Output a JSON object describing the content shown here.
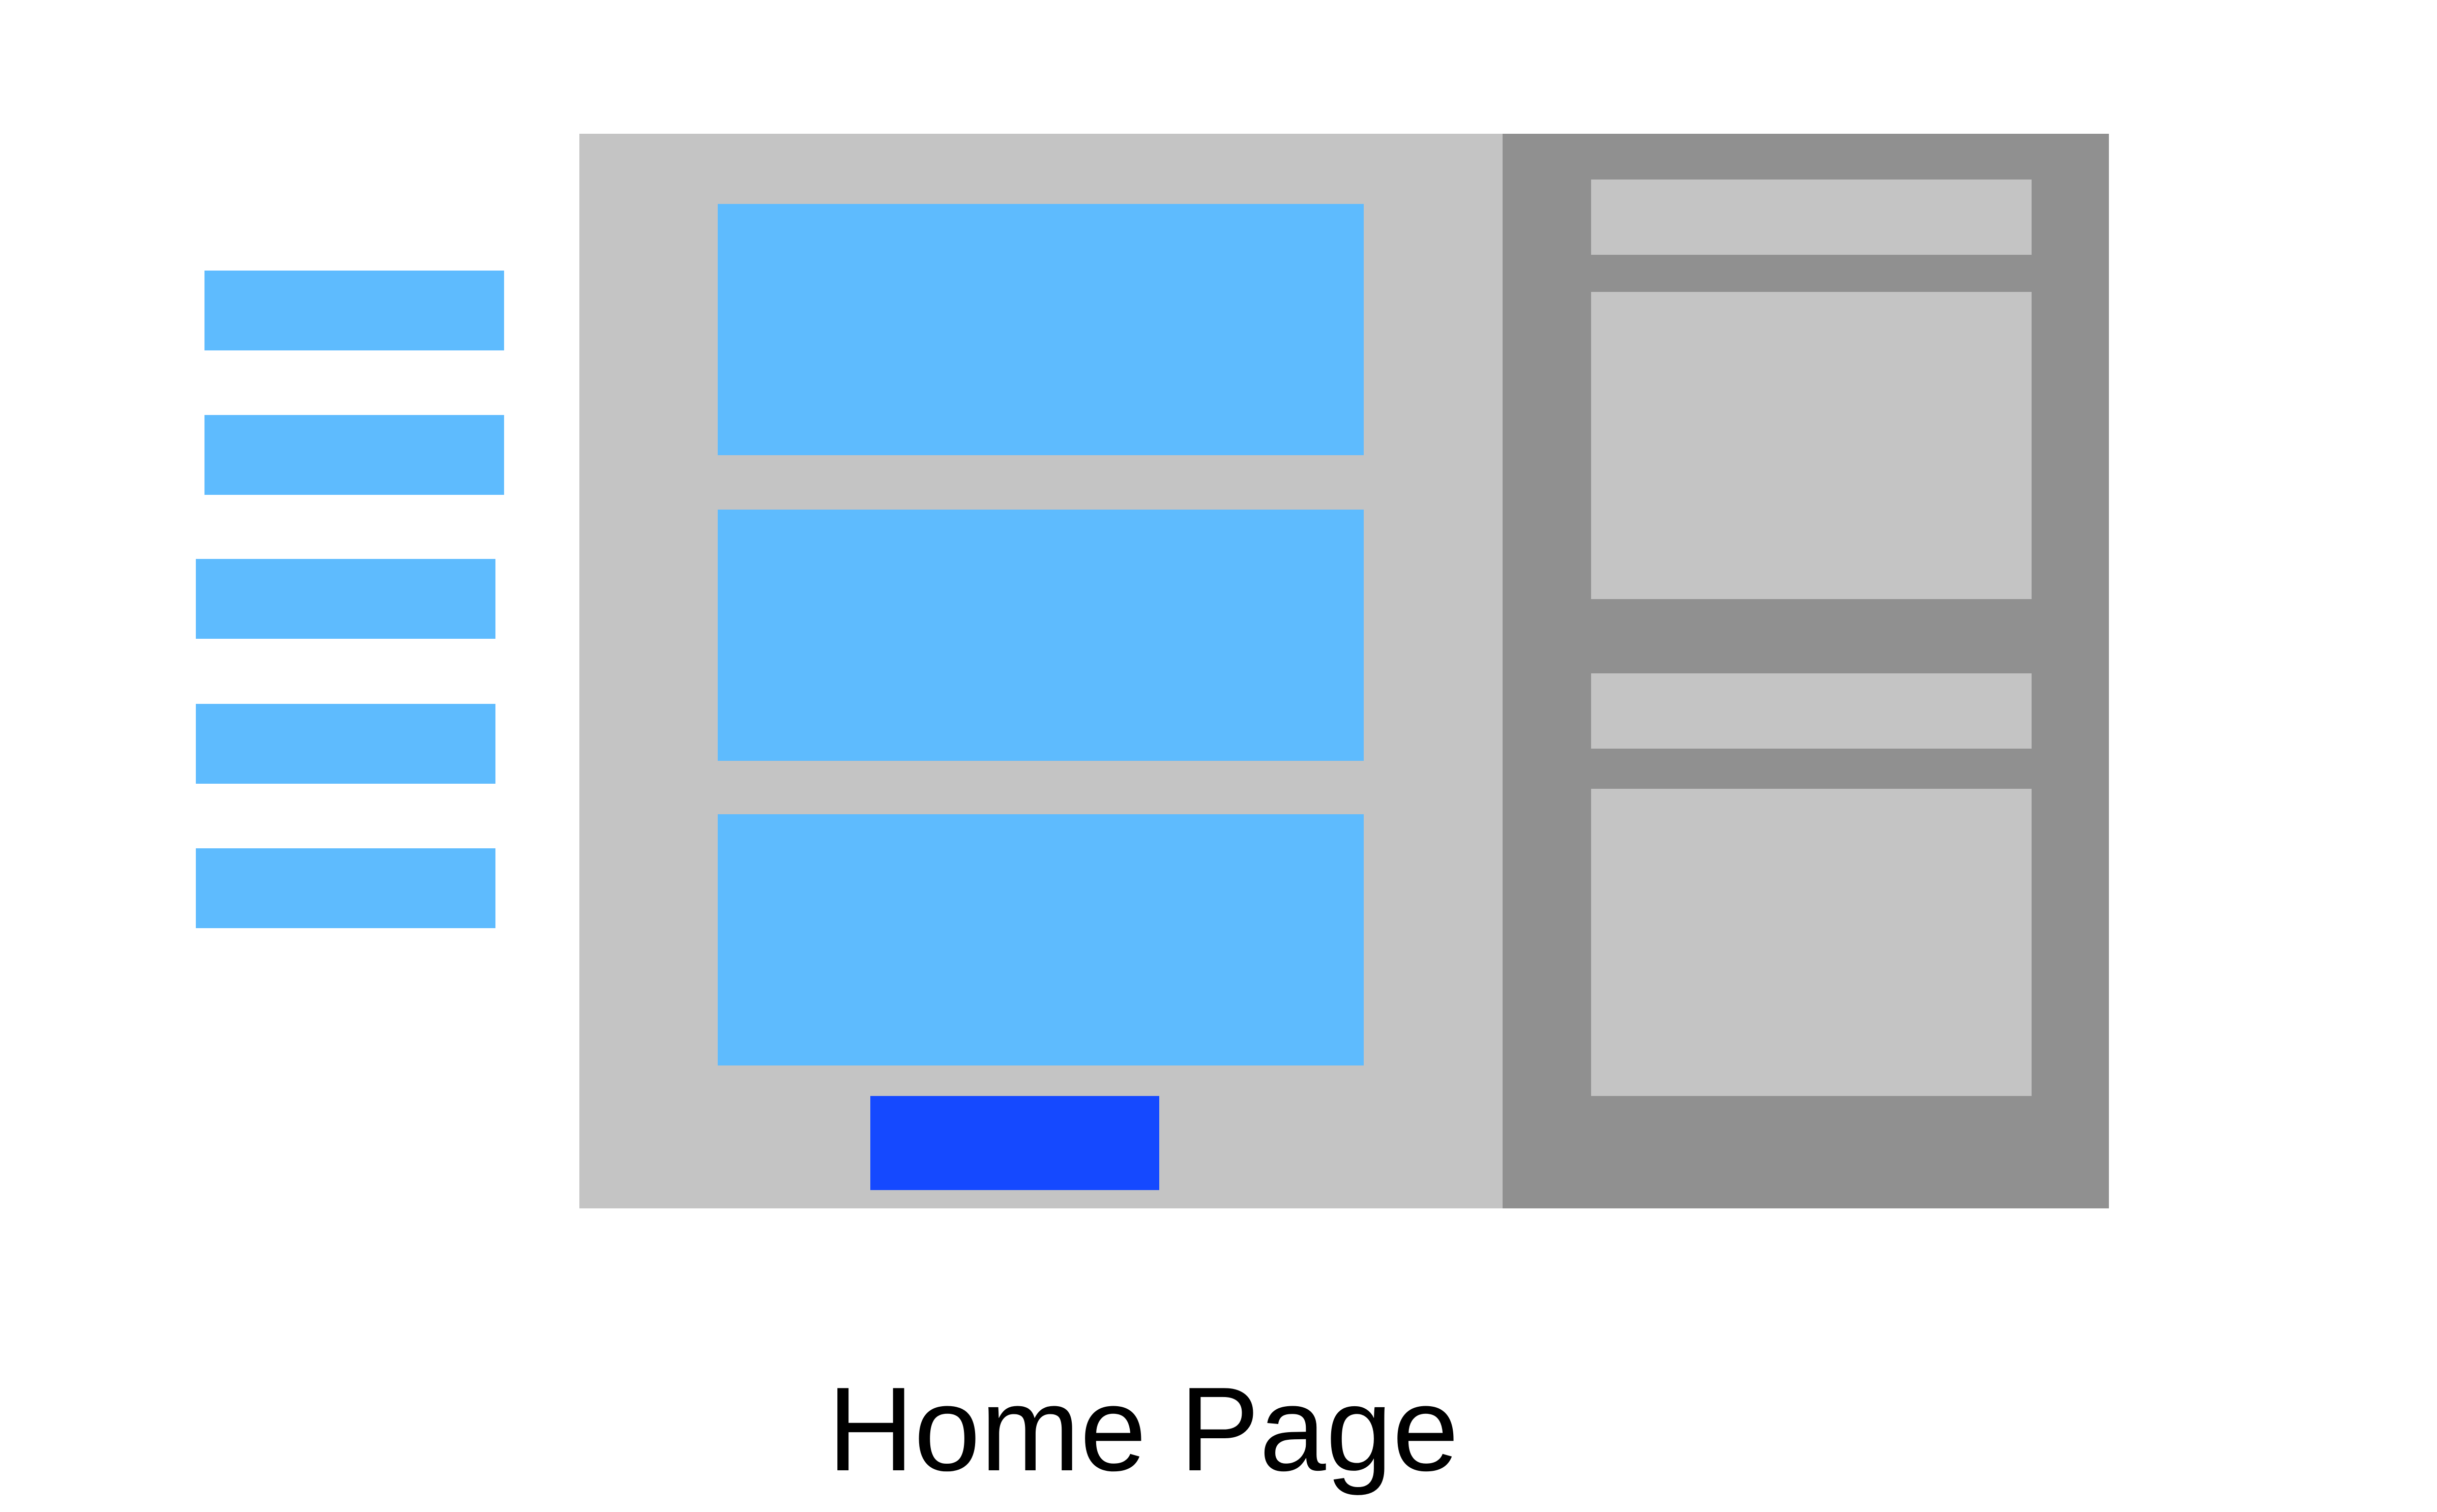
{
  "diagram": {
    "caption": "Home Page",
    "colors": {
      "background": "#ffffff",
      "nav_item": "#5ebbfe",
      "main_panel": "#c4c4c4",
      "content_block": "#5ebbfe",
      "primary_button": "#1549ff",
      "sidebar": "#909090",
      "sidebar_block": "#c4c4c4",
      "caption_text": "#000000"
    }
  }
}
